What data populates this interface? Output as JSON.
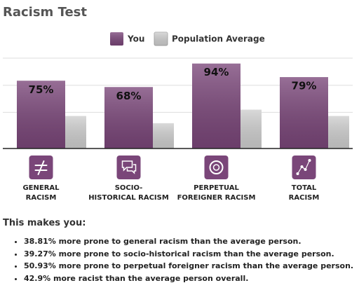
{
  "chart_data": {
    "type": "bar",
    "title": "Racism Test",
    "categories": [
      "GENERAL\nRACISM",
      "SOCIO-\nHISTORICAL RACISM",
      "PERPETUAL\nFOREIGNER RACISM",
      "TOTAL\nRACISM"
    ],
    "series": [
      {
        "name": "You",
        "color": "#7a4679",
        "values": [
          75,
          68,
          94,
          79
        ],
        "value_labels": [
          "75%",
          "68%",
          "94%",
          "79%"
        ]
      },
      {
        "name": "Population Average",
        "color": "#cfcfcf",
        "values": [
          36,
          28,
          43,
          36
        ]
      }
    ],
    "ylim": [
      0,
      100
    ],
    "yticks": [
      40,
      70,
      100
    ],
    "grid": true
  },
  "summary": {
    "heading": "This makes you:",
    "items": [
      "38.81% more prone to general racism than the average person.",
      "39.27% more prone to socio-historical racism than the average person.",
      "50.93% more prone to perpetual foreigner racism than the average person.",
      "42.9% more racist than the average person overall."
    ]
  }
}
